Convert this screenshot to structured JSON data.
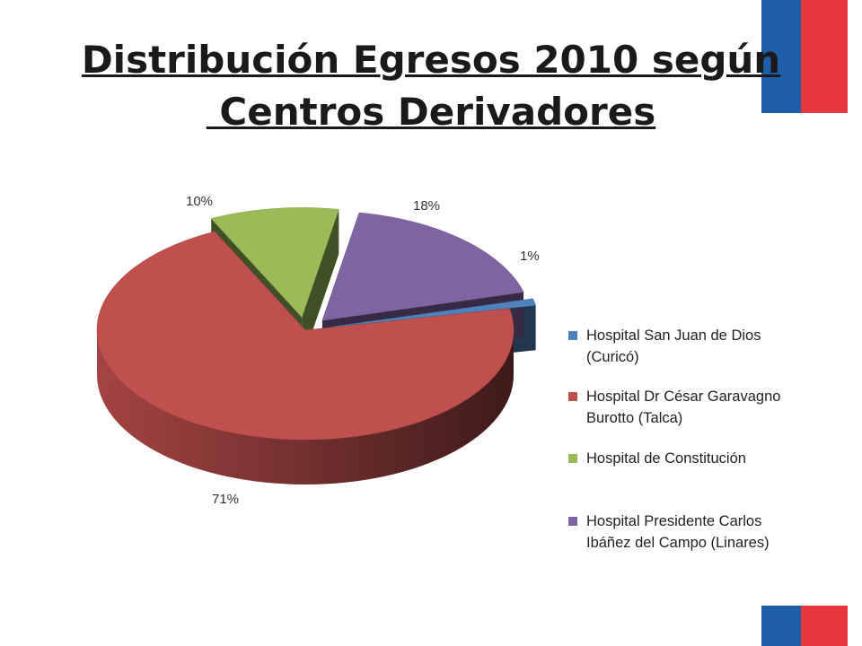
{
  "title": {
    "line1": "Distribución Egresos 2010  según",
    "line2": " Centros Derivadores"
  },
  "colors": {
    "flag_blue": "#1e5ea8",
    "flag_red": "#e8383f"
  },
  "chart_data": {
    "type": "pie",
    "style": "3d-exploded",
    "categories": [
      "Hospital San Juan de Dios (Curicó)",
      "Hospital Dr César Garavagno Burotto (Talca)",
      "Hospital de Constitución",
      "Hospital Presidente Carlos Ibáñez del Campo (Linares)"
    ],
    "values": [
      1,
      71,
      10,
      18
    ],
    "labels": [
      "1%",
      "71%",
      "10%",
      "18%"
    ],
    "colors": [
      "#4f81bd",
      "#c0504d",
      "#9bbb59",
      "#8064a2"
    ],
    "legend_position": "right"
  },
  "legend": {
    "items": [
      {
        "line1": "Hospital San Juan de Dios",
        "line2": "(Curicó)"
      },
      {
        "line1": "Hospital Dr César Garavagno",
        "line2": "Burotto (Talca)"
      },
      {
        "line1": "Hospital de Constitución",
        "line2": ""
      },
      {
        "line1": "Hospital Presidente Carlos",
        "line2": "Ibáñez del Campo (Linares)"
      }
    ]
  }
}
